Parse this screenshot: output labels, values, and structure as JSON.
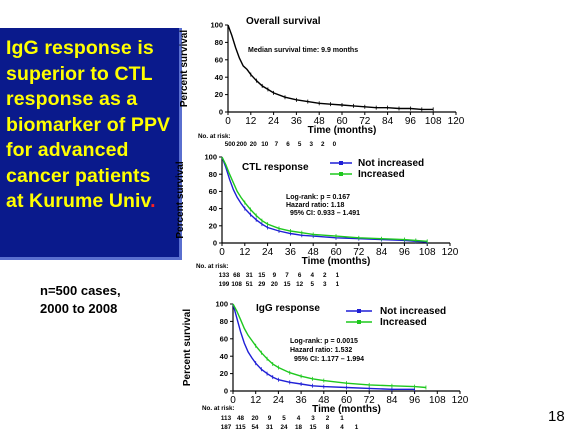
{
  "slide": {
    "title_main": "IgG response is superior to CTL response as a biomarker of PPV for advanced cancer patients at Kurume Univ",
    "title_end": ".",
    "cases_line1": "n=500 cases,",
    "cases_line2": "2000 to 2008",
    "slide_number": "18"
  },
  "colors": {
    "title_bg": "#0a1a8c",
    "title_text": "#ffff00",
    "red": "#ff2020",
    "blue": "#1f1fd6",
    "green": "#1ec81e"
  },
  "chart_data": [
    {
      "type": "line",
      "title": "Overall survival",
      "ylabel": "Percent survival",
      "xlabel": "Time (months)",
      "xlim": [
        0,
        120
      ],
      "ylim": [
        0,
        100
      ],
      "xticks": [
        0,
        12,
        24,
        36,
        48,
        60,
        72,
        84,
        96,
        108,
        120
      ],
      "yticks": [
        0,
        20,
        40,
        60,
        80,
        100
      ],
      "annotations": [
        "Median survival time: 9.9 months"
      ],
      "risk_label": "No. at risk:",
      "risk_rows": [
        [
          "500",
          "200",
          "20",
          "10",
          "7",
          "6",
          "5",
          "3",
          "2",
          "0"
        ]
      ],
      "series": [
        {
          "color": "#000000",
          "x": [
            0,
            2,
            4,
            6,
            8,
            10,
            12,
            15,
            18,
            21,
            24,
            30,
            36,
            42,
            48,
            54,
            60,
            66,
            72,
            78,
            84,
            90,
            96,
            102,
            108
          ],
          "y": [
            100,
            88,
            74,
            62,
            53,
            49,
            43,
            36,
            30,
            26,
            22,
            17,
            14,
            12,
            10,
            9,
            8,
            7,
            6,
            5,
            5,
            4,
            4,
            3,
            3
          ]
        }
      ]
    },
    {
      "type": "line",
      "title": "CTL response",
      "ylabel": "Percent survival",
      "xlabel": "Time (months)",
      "xlim": [
        0,
        120
      ],
      "ylim": [
        0,
        100
      ],
      "xticks": [
        0,
        12,
        24,
        36,
        48,
        60,
        72,
        84,
        96,
        108,
        120
      ],
      "yticks": [
        0,
        20,
        40,
        60,
        80,
        100
      ],
      "annotations": [
        "Log-rank: p = 0.167",
        "Hazard ratio: 1.18",
        "95% CI: 0.933 – 1.491"
      ],
      "risk_label": "No. at risk:",
      "risk_rows": [
        [
          "133",
          "68",
          "31",
          "15",
          "9",
          "7",
          "6",
          "4",
          "2",
          "1"
        ],
        [
          "199",
          "108",
          "51",
          "29",
          "20",
          "15",
          "12",
          "5",
          "3",
          "1"
        ]
      ],
      "series": [
        {
          "name": "Not increased",
          "color": "#1f1fd6",
          "x": [
            0,
            2,
            4,
            6,
            8,
            10,
            12,
            15,
            18,
            21,
            24,
            30,
            36,
            42,
            48,
            60,
            72,
            84,
            96,
            102,
            108
          ],
          "y": [
            100,
            88,
            74,
            62,
            53,
            46,
            40,
            33,
            27,
            22,
            18,
            14,
            11,
            9,
            8,
            6,
            5,
            4,
            3,
            2,
            1
          ]
        },
        {
          "name": "Increased",
          "color": "#1ec81e",
          "x": [
            0,
            2,
            4,
            6,
            8,
            10,
            12,
            15,
            18,
            21,
            24,
            30,
            36,
            42,
            48,
            60,
            72,
            84,
            96,
            102,
            108
          ],
          "y": [
            100,
            91,
            80,
            70,
            60,
            53,
            47,
            39,
            32,
            26,
            22,
            17,
            14,
            12,
            10,
            8,
            6,
            5,
            4,
            3,
            2
          ]
        }
      ]
    },
    {
      "type": "line",
      "title": "IgG response",
      "ylabel": "Percent survival",
      "xlabel": "Time (months)",
      "xlim": [
        0,
        120
      ],
      "ylim": [
        0,
        100
      ],
      "xticks": [
        0,
        12,
        24,
        36,
        48,
        60,
        72,
        84,
        96,
        108,
        120
      ],
      "yticks": [
        0,
        20,
        40,
        60,
        80,
        100
      ],
      "annotations": [
        "Log-rank: p = 0.0015",
        "Hazard ratio: 1.532",
        "95% CI: 1.177 – 1.994"
      ],
      "risk_label": "No. at risk:",
      "risk_rows": [
        [
          "113",
          "48",
          "20",
          "9",
          "5",
          "4",
          "3",
          "2",
          "1"
        ],
        [
          "187",
          "115",
          "54",
          "31",
          "24",
          "18",
          "15",
          "8",
          "4",
          "1"
        ]
      ],
      "series": [
        {
          "name": "Not increased",
          "color": "#1f1fd6",
          "x": [
            0,
            2,
            4,
            6,
            8,
            10,
            12,
            15,
            18,
            21,
            24,
            30,
            36,
            42,
            48,
            60,
            72,
            84,
            96
          ],
          "y": [
            100,
            84,
            68,
            55,
            45,
            38,
            32,
            25,
            20,
            16,
            13,
            10,
            8,
            6,
            5,
            4,
            3,
            2,
            2
          ]
        },
        {
          "name": "Increased",
          "color": "#1ec81e",
          "x": [
            0,
            2,
            4,
            6,
            8,
            10,
            12,
            15,
            18,
            21,
            24,
            30,
            36,
            42,
            48,
            60,
            72,
            84,
            96,
            102
          ],
          "y": [
            100,
            92,
            82,
            72,
            64,
            58,
            52,
            44,
            37,
            31,
            27,
            21,
            17,
            14,
            12,
            9,
            7,
            6,
            5,
            4
          ]
        }
      ]
    }
  ]
}
